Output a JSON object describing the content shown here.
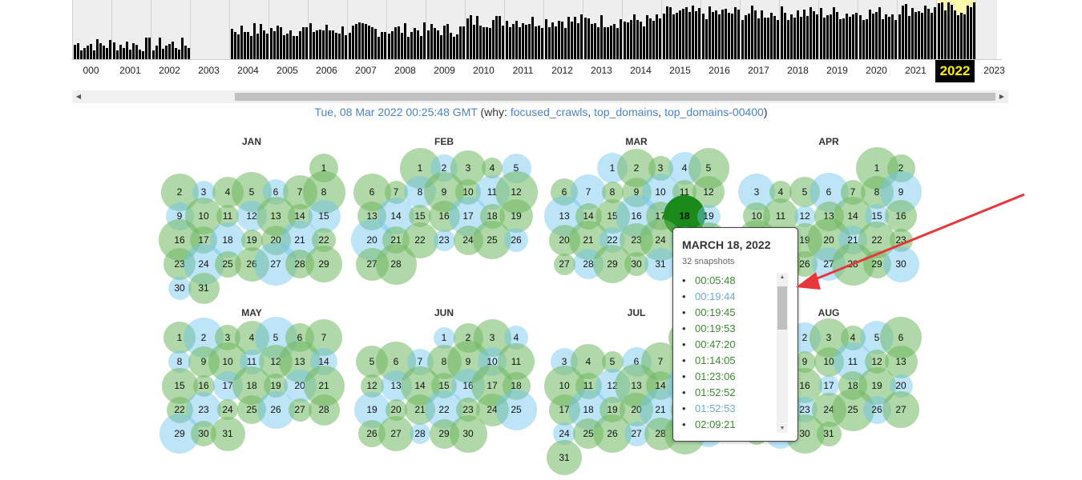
{
  "timeline": {
    "years": [
      "000",
      "2001",
      "2002",
      "2003",
      "2004",
      "2005",
      "2006",
      "2007",
      "2008",
      "2009",
      "2010",
      "2011",
      "2012",
      "2013",
      "2014",
      "2015",
      "2016",
      "2017",
      "2018",
      "2019",
      "2020",
      "2021",
      "2022",
      "2023"
    ],
    "selected_year": "2022"
  },
  "capture": {
    "datetime": "Tue, 08 Mar 2022 00:25:48 GMT",
    "why_prefix": "(why:",
    "reasons": [
      "focused_crawls",
      "top_domains",
      "top_domains-00400"
    ],
    "why_suffix": ")"
  },
  "colors": {
    "captured_green": "#70b860",
    "redirect_blue": "#6ec4f0",
    "selected_green": "#1a8a1a",
    "year_highlight": "#ffee00",
    "arrow": "#e8373a"
  },
  "calendar": {
    "months": [
      {
        "name": "JAN",
        "days": 31
      },
      {
        "name": "FEB",
        "days": 28
      },
      {
        "name": "MAR",
        "days": 31
      },
      {
        "name": "APR",
        "days": 30
      },
      {
        "name": "MAY",
        "days": 31
      },
      {
        "name": "JUN",
        "days": 30
      },
      {
        "name": "JUL",
        "days": 31
      },
      {
        "name": "AUG",
        "days": 31
      }
    ],
    "selected_day": {
      "month": "MAR",
      "day": 18
    }
  },
  "popup": {
    "date": "MARCH 18, 2022",
    "count": "32 snapshots",
    "times": [
      {
        "time": "00:05:48",
        "status": "green"
      },
      {
        "time": "00:19:44",
        "status": "blue"
      },
      {
        "time": "00:19:45",
        "status": "green"
      },
      {
        "time": "00:19:53",
        "status": "green"
      },
      {
        "time": "00:47:20",
        "status": "green"
      },
      {
        "time": "01:14:05",
        "status": "green"
      },
      {
        "time": "01:23:06",
        "status": "green"
      },
      {
        "time": "01:52:52",
        "status": "green"
      },
      {
        "time": "01:52:53",
        "status": "blue"
      },
      {
        "time": "02:09:21",
        "status": "green"
      }
    ]
  }
}
